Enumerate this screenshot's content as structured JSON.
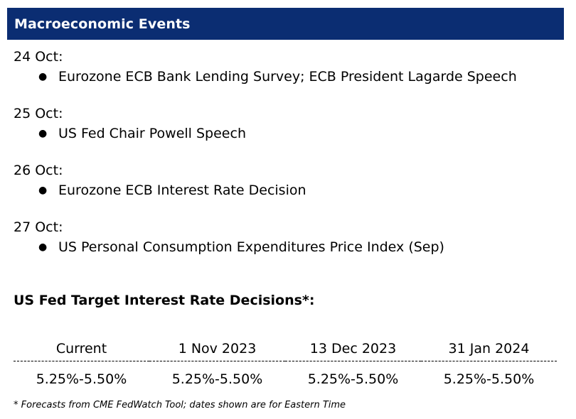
{
  "colors": {
    "header_background": "#0b2d72",
    "header_text": "#ffffff",
    "body_text": "#000000"
  },
  "header": {
    "title": "Macroeconomic Events"
  },
  "events": [
    {
      "date": "24 Oct:",
      "items": [
        "Eurozone ECB Bank Lending Survey; ECB President Lagarde Speech"
      ]
    },
    {
      "date": "25 Oct:",
      "items": [
        "US Fed Chair Powell Speech"
      ]
    },
    {
      "date": "26 Oct:",
      "items": [
        "Eurozone ECB Interest Rate Decision"
      ]
    },
    {
      "date": "27 Oct:",
      "items": [
        "US Personal Consumption Expenditures Price Index (Sep)"
      ]
    }
  ],
  "rates": {
    "title": "US Fed Target Interest Rate Decisions*:",
    "columns": [
      "Current",
      "1 Nov 2023",
      "13 Dec 2023",
      "31 Jan 2024"
    ],
    "values": [
      "5.25%-5.50%",
      "5.25%-5.50%",
      "5.25%-5.50%",
      "5.25%-5.50%"
    ]
  },
  "footnote": "* Forecasts from CME FedWatch Tool; dates shown are for Eastern Time"
}
